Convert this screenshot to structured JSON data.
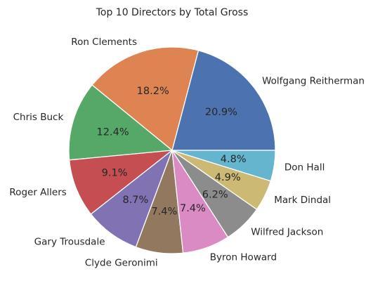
{
  "chart_data": {
    "type": "pie",
    "title": "Top 10 Directors by Total Gross",
    "start_angle_deg": 0,
    "direction": "counterclockwise",
    "slices": [
      {
        "label": "Wolfgang Reitherman",
        "value": 20.9,
        "pct_text": "20.9%",
        "color": "#4c72b0"
      },
      {
        "label": "Ron Clements",
        "value": 18.2,
        "pct_text": "18.2%",
        "color": "#dd8452"
      },
      {
        "label": "Chris Buck",
        "value": 12.4,
        "pct_text": "12.4%",
        "color": "#55a868"
      },
      {
        "label": "Roger Allers",
        "value": 9.1,
        "pct_text": "9.1%",
        "color": "#c44e52"
      },
      {
        "label": "Gary Trousdale",
        "value": 8.7,
        "pct_text": "8.7%",
        "color": "#8172b3"
      },
      {
        "label": "Clyde Geronimi",
        "value": 7.4,
        "pct_text": "7.4%",
        "color": "#937860"
      },
      {
        "label": "Byron Howard",
        "value": 7.4,
        "pct_text": "7.4%",
        "color": "#da8bc3"
      },
      {
        "label": "Wilfred Jackson",
        "value": 6.2,
        "pct_text": "6.2%",
        "color": "#8c8c8c"
      },
      {
        "label": "Mark Dindal",
        "value": 4.9,
        "pct_text": "4.9%",
        "color": "#ccb974"
      },
      {
        "label": "Don Hall",
        "value": 4.8,
        "pct_text": "4.8%",
        "color": "#64b5cd"
      }
    ]
  }
}
